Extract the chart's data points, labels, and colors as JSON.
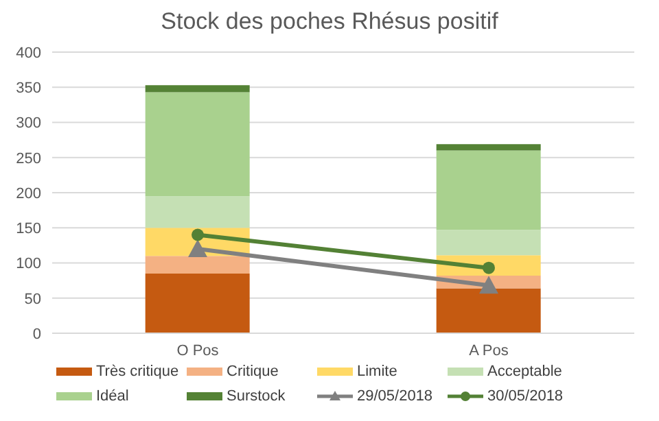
{
  "chart_data": {
    "type": "bar",
    "title": "Stock des poches Rhésus positif",
    "categories": [
      "O Pos",
      "A Pos"
    ],
    "stacked": true,
    "ylim": [
      0,
      400
    ],
    "yticks": [
      0,
      50,
      100,
      150,
      200,
      250,
      300,
      350,
      400
    ],
    "grid": "y",
    "legend": "bottom",
    "series": [
      {
        "name": "Très critique",
        "color": "#c55a11",
        "values": [
          85,
          64
        ]
      },
      {
        "name": "Critique",
        "color": "#f4b183",
        "values": [
          25,
          18
        ]
      },
      {
        "name": "Limite",
        "color": "#ffd966",
        "values": [
          40,
          29
        ]
      },
      {
        "name": "Acceptable",
        "color": "#c5e0b4",
        "values": [
          45,
          36
        ]
      },
      {
        "name": "Idéal",
        "color": "#a9d18e",
        "values": [
          148,
          113
        ]
      },
      {
        "name": "Surstock",
        "color": "#548235",
        "values": [
          10,
          9
        ]
      },
      {
        "name": "29/05/2018",
        "type": "line",
        "color": "#808080",
        "marker": "triangle",
        "values": [
          120,
          68
        ]
      },
      {
        "name": "30/05/2018",
        "type": "line",
        "color": "#538135",
        "marker": "circle",
        "values": [
          140,
          93
        ]
      }
    ]
  }
}
